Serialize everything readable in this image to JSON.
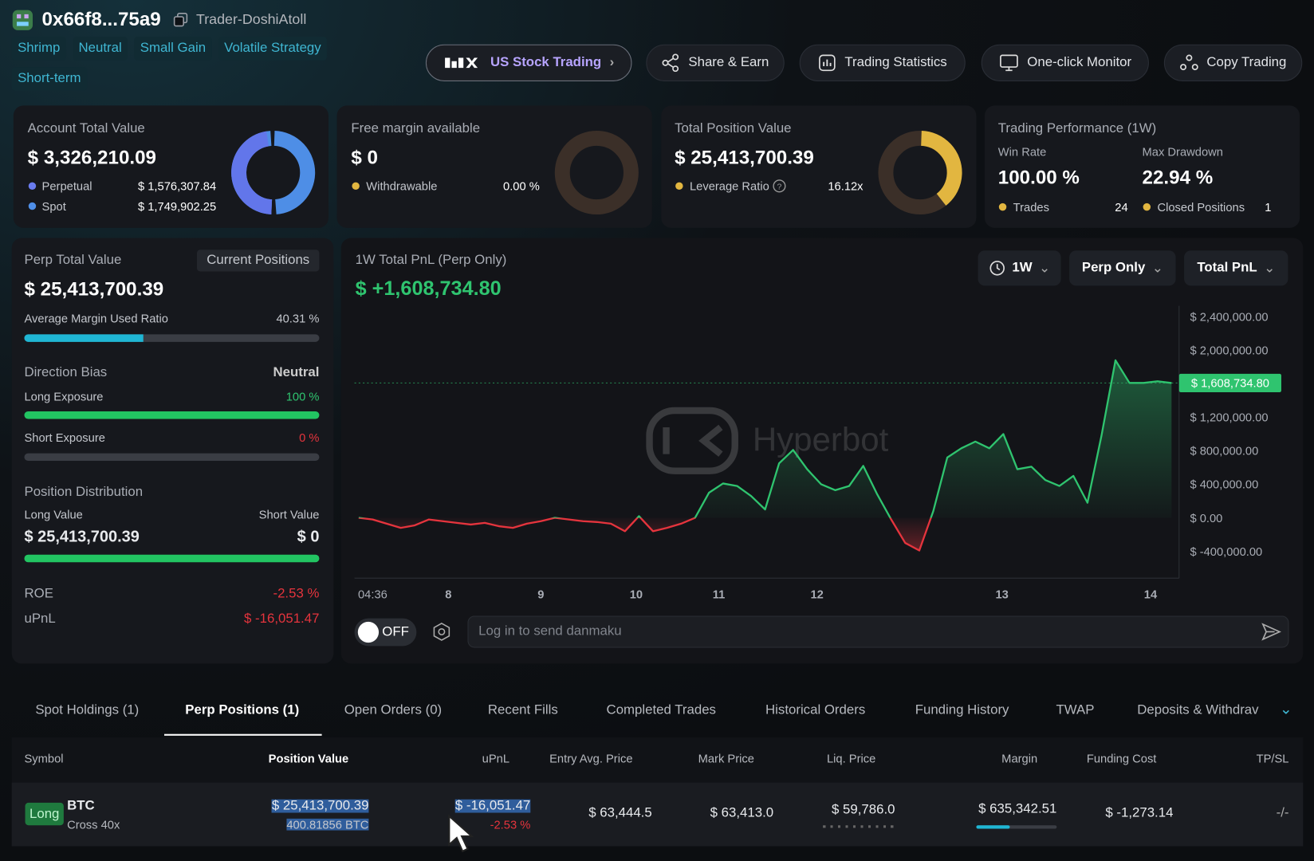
{
  "header": {
    "address": "0x66f8...75a9",
    "name": "Trader-DoshiAtoll",
    "tags": [
      "Shrimp",
      "Neutral",
      "Small Gain",
      "Volatile Strategy",
      "Short-term"
    ],
    "buttons": [
      "US Stock Trading",
      "Share & Earn",
      "Trading Statistics",
      "One-click Monitor",
      "Copy Trading"
    ]
  },
  "cards": {
    "account": {
      "label": "Account Total Value",
      "value": "$ 3,326,210.09",
      "items": [
        {
          "label": "Perpetual",
          "value": "$ 1,576,307.84"
        },
        {
          "label": "Spot",
          "value": "$ 1,749,902.25"
        }
      ]
    },
    "margin": {
      "label": "Free margin available",
      "value": "$ 0",
      "item_label": "Withdrawable",
      "item_value": "0.00 %"
    },
    "position": {
      "label": "Total Position Value",
      "value": "$ 25,413,700.39",
      "item_label": "Leverage Ratio",
      "item_value": "16.12x"
    },
    "performance": {
      "label": "Trading Performance (1W)",
      "win_rate_label": "Win Rate",
      "win_rate": "100.00 %",
      "drawdown_label": "Max Drawdown",
      "drawdown": "22.94 %",
      "trades_label": "Trades",
      "trades": "24",
      "closed_label": "Closed Positions",
      "closed": "1"
    }
  },
  "perp_panel": {
    "label": "Perp Total Value",
    "button": "Current Positions",
    "value": "$ 25,413,700.39",
    "margin_ratio_label": "Average Margin Used Ratio",
    "margin_ratio": "40.31 %",
    "bias_label": "Direction Bias",
    "bias": "Neutral",
    "long_exposure_label": "Long Exposure",
    "long_exposure": "100 %",
    "short_exposure_label": "Short Exposure",
    "short_exposure": "0 %",
    "distribution_label": "Position Distribution",
    "long_value_label": "Long Value",
    "short_value_label": "Short Value",
    "long_value": "$ 25,413,700.39",
    "short_value": "$ 0",
    "roe_label": "ROE",
    "roe": "-2.53 %",
    "upnl_label": "uPnL",
    "upnl": "$ -16,051.47"
  },
  "chart_data": {
    "type": "line",
    "title": "1W Total PnL (Perp Only)",
    "total": "$ +1,608,734.80",
    "controls": [
      "1W",
      "Perp Only",
      "Total PnL"
    ],
    "watermark": "Hyperbot",
    "color": "#2fc46f",
    "negative_color": "#e5343d",
    "values": [
      0,
      -20000,
      -70000,
      -120000,
      -90000,
      -20000,
      -40000,
      -60000,
      -80000,
      -60000,
      -100000,
      -120000,
      -70000,
      -40000,
      0,
      -20000,
      -40000,
      -50000,
      -70000,
      -160000,
      20000,
      -160000,
      -120000,
      -70000,
      0,
      300000,
      410000,
      380000,
      260000,
      100000,
      650000,
      810000,
      580000,
      400000,
      330000,
      380000,
      620000,
      280000,
      -20000,
      -300000,
      -390000,
      80000,
      720000,
      830000,
      910000,
      830000,
      1000000,
      580000,
      610000,
      450000,
      380000,
      500000,
      180000,
      980000,
      1880000,
      1610000,
      1610000,
      1630000,
      1608734.8
    ],
    "last_value_label": "$ 1,608,734.80",
    "xlim": [
      0,
      58
    ],
    "xticks": [
      {
        "value": 1,
        "label": "04:36"
      },
      {
        "value": 6.4,
        "label": "8"
      },
      {
        "value": 13,
        "label": "9"
      },
      {
        "value": 19.8,
        "label": "10"
      },
      {
        "value": 25.7,
        "label": "11"
      },
      {
        "value": 32.7,
        "label": "12"
      },
      {
        "value": 45.9,
        "label": "13"
      },
      {
        "value": 56.5,
        "label": "14"
      }
    ],
    "ylim": [
      -720000,
      2530000
    ],
    "yticks": [
      {
        "value": 2400000,
        "label": "$ 2,400,000.00"
      },
      {
        "value": 2000000,
        "label": "$ 2,000,000.00"
      },
      {
        "value": 1200000,
        "label": "$ 1,200,000.00"
      },
      {
        "value": 800000,
        "label": "$ 800,000.00"
      },
      {
        "value": 400000,
        "label": "$ 400,000.00"
      },
      {
        "value": 0,
        "label": "$ 0.00"
      },
      {
        "value": -400000,
        "label": "$ -400,000.00"
      }
    ]
  },
  "danmaku": {
    "toggle": "OFF",
    "placeholder": "Log in to send danmaku"
  },
  "tabs": [
    "Spot Holdings (1)",
    "Perp Positions (1)",
    "Open Orders (0)",
    "Recent Fills",
    "Completed Trades",
    "Historical Orders",
    "Funding History",
    "TWAP",
    "Deposits & Withdrav"
  ],
  "table": {
    "headers": [
      "Symbol",
      "Position Value",
      "uPnL",
      "Entry Avg. Price",
      "Mark Price",
      "Liq. Price",
      "Margin",
      "Funding Cost",
      "TP/SL"
    ],
    "rows": [
      [
        "Long",
        "BTC",
        "Cross 40x",
        "$ 25,413,700.39",
        "400.81856 BTC",
        "$ -16,051.47",
        "-2.53 %",
        "$ 63,444.5",
        "$ 63,413.0",
        "$ 59,786.0",
        "$ 635,342.51",
        "$ -1,273.14",
        "-/-"
      ]
    ]
  }
}
